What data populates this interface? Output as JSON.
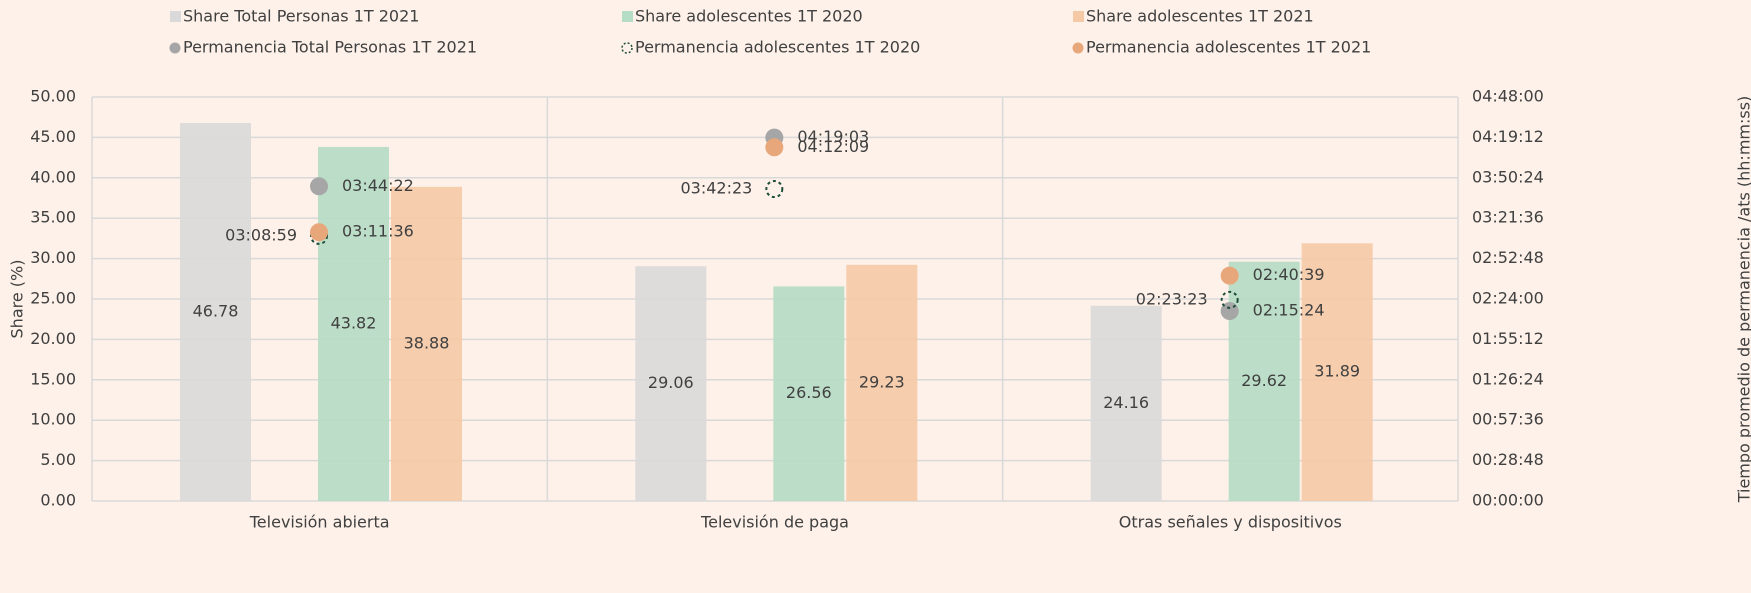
{
  "chart_data": {
    "type": "bar",
    "y_label": "Share (%)",
    "y2_label": "Tiempo promedio de permanencia /ats (hh:mm:ss)",
    "categories": [
      "Televisión abierta",
      "Televisión de paga",
      "Otras señales y dispositivos"
    ],
    "ylim": [
      0,
      50
    ],
    "yticks": [
      {
        "value": 0,
        "label": "0.00"
      },
      {
        "value": 5,
        "label": "5.00"
      },
      {
        "value": 10,
        "label": "10.00"
      },
      {
        "value": 15,
        "label": "15.00"
      },
      {
        "value": 20,
        "label": "20.00"
      },
      {
        "value": 25,
        "label": "25.00"
      },
      {
        "value": 30,
        "label": "30.00"
      },
      {
        "value": 35,
        "label": "35.00"
      },
      {
        "value": 40,
        "label": "40.00"
      },
      {
        "value": 45,
        "label": "45.00"
      },
      {
        "value": 50,
        "label": "50.00"
      }
    ],
    "y2lim": [
      0,
      17280
    ],
    "y2ticks": [
      {
        "value": 0,
        "label": "00:00:00"
      },
      {
        "value": 1728,
        "label": "00:28:48"
      },
      {
        "value": 3456,
        "label": "00:57:36"
      },
      {
        "value": 5184,
        "label": "01:26:24"
      },
      {
        "value": 6912,
        "label": "01:55:12"
      },
      {
        "value": 8640,
        "label": "02:24:00"
      },
      {
        "value": 10368,
        "label": "02:52:48"
      },
      {
        "value": 12096,
        "label": "03:21:36"
      },
      {
        "value": 13824,
        "label": "03:50:24"
      },
      {
        "value": 15552,
        "label": "04:19:12"
      },
      {
        "value": 17280,
        "label": "04:48:00"
      }
    ],
    "grid": true,
    "series": [
      {
        "name": "Share Total Personas 1T 2021",
        "type": "bar",
        "color": "#d9d9d9",
        "values": [
          46.78,
          29.06,
          24.16
        ]
      },
      {
        "name": "Share adolescentes 1T 2020",
        "type": "bar",
        "color": "#b5dcc4",
        "values": [
          43.82,
          26.56,
          29.62
        ]
      },
      {
        "name": "Share adolescentes 1T 2021",
        "type": "bar",
        "color": "#f5c9a6",
        "values": [
          38.88,
          29.23,
          31.89
        ]
      },
      {
        "name": "Permanencia Total Personas 1T 2021",
        "type": "scatter",
        "axis": "y2",
        "color": "#a6a6a6",
        "marker": "circle",
        "values": [
          13462,
          15543,
          8124
        ],
        "value_labels": [
          "03:44:22",
          "04:19:03",
          "02:15:24"
        ]
      },
      {
        "name": "Permanencia adolescentes 1T 2020",
        "type": "scatter",
        "axis": "y2",
        "color": "#1e4d3a",
        "marker": "dashed-circle",
        "values": [
          11339,
          13343,
          8603
        ],
        "value_labels": [
          "03:08:59",
          "03:42:23",
          "02:23:23"
        ]
      },
      {
        "name": "Permanencia adolescentes 1T 2021",
        "type": "scatter",
        "axis": "y2",
        "color": "#e8a77a",
        "marker": "circle",
        "values": [
          11496,
          15129,
          9639
        ],
        "value_labels": [
          "03:11:36",
          "04:12:09",
          "02:40:39"
        ]
      }
    ]
  }
}
